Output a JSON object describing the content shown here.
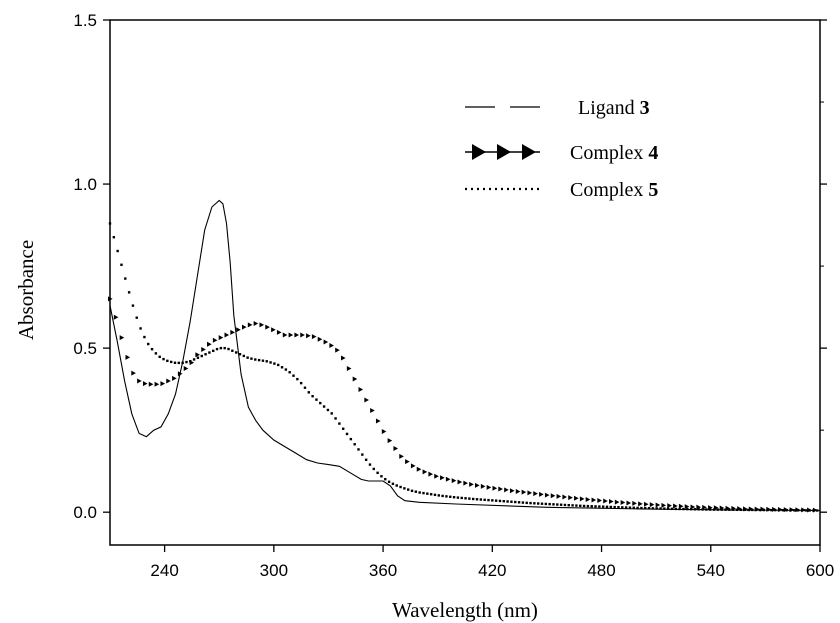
{
  "chart_data": {
    "type": "line",
    "xlabel": "Wavelength (nm)",
    "ylabel": "Absorbance",
    "xlim": [
      210,
      600
    ],
    "ylim": [
      -0.1,
      1.5
    ],
    "xticks": [
      "240",
      "300",
      "360",
      "420",
      "480",
      "540",
      "600"
    ],
    "yticks": [
      "0.0",
      "0.5",
      "1.0",
      "1.5"
    ],
    "grid": false,
    "legend_position": "top-right",
    "series": [
      {
        "name": "Ligand",
        "name_num": "3",
        "style": "solid-thin",
        "x": [
          210,
          214,
          218,
          222,
          226,
          230,
          234,
          238,
          242,
          246,
          250,
          254,
          258,
          262,
          266,
          270,
          272,
          274,
          276,
          278,
          282,
          286,
          290,
          294,
          300,
          306,
          312,
          318,
          324,
          330,
          336,
          342,
          348,
          352,
          356,
          360,
          364,
          368,
          372,
          380,
          400,
          450,
          500,
          550,
          600
        ],
        "y": [
          0.63,
          0.52,
          0.4,
          0.3,
          0.24,
          0.23,
          0.25,
          0.26,
          0.3,
          0.36,
          0.46,
          0.58,
          0.72,
          0.86,
          0.93,
          0.95,
          0.94,
          0.88,
          0.76,
          0.6,
          0.42,
          0.32,
          0.28,
          0.25,
          0.22,
          0.2,
          0.18,
          0.16,
          0.15,
          0.145,
          0.14,
          0.12,
          0.1,
          0.095,
          0.095,
          0.095,
          0.08,
          0.05,
          0.035,
          0.03,
          0.025,
          0.015,
          0.01,
          0.007,
          0.005
        ]
      },
      {
        "name": "Complex",
        "name_num": "4",
        "style": "triangle-markers",
        "x": [
          210,
          214,
          218,
          222,
          226,
          230,
          234,
          238,
          242,
          246,
          250,
          254,
          258,
          262,
          266,
          270,
          274,
          278,
          282,
          286,
          290,
          294,
          298,
          302,
          306,
          310,
          316,
          322,
          328,
          334,
          338,
          342,
          346,
          350,
          354,
          358,
          362,
          366,
          370,
          374,
          378,
          384,
          390,
          396,
          402,
          410,
          420,
          430,
          440,
          450,
          460,
          470,
          480,
          490,
          500,
          510,
          520,
          530,
          540,
          550,
          560,
          570,
          580,
          590,
          600
        ],
        "y": [
          0.65,
          0.58,
          0.5,
          0.43,
          0.4,
          0.39,
          0.39,
          0.39,
          0.4,
          0.41,
          0.43,
          0.45,
          0.48,
          0.5,
          0.52,
          0.53,
          0.54,
          0.55,
          0.56,
          0.57,
          0.575,
          0.57,
          0.56,
          0.55,
          0.54,
          0.54,
          0.54,
          0.535,
          0.52,
          0.5,
          0.47,
          0.43,
          0.39,
          0.35,
          0.31,
          0.27,
          0.23,
          0.2,
          0.17,
          0.15,
          0.135,
          0.12,
          0.108,
          0.1,
          0.092,
          0.083,
          0.074,
          0.066,
          0.059,
          0.052,
          0.046,
          0.04,
          0.035,
          0.03,
          0.026,
          0.022,
          0.019,
          0.016,
          0.014,
          0.012,
          0.01,
          0.009,
          0.008,
          0.007,
          0.006
        ]
      },
      {
        "name": "Complex",
        "name_num": "5",
        "style": "dotted",
        "x": [
          210,
          214,
          218,
          222,
          226,
          230,
          234,
          238,
          242,
          246,
          250,
          254,
          258,
          262,
          266,
          270,
          274,
          278,
          282,
          286,
          290,
          296,
          302,
          308,
          314,
          320,
          326,
          332,
          336,
          340,
          344,
          348,
          352,
          356,
          360,
          364,
          368,
          372,
          376,
          380,
          386,
          392,
          400,
          410,
          420,
          430,
          440,
          450,
          460,
          470,
          480,
          490,
          500,
          520,
          540,
          560,
          580,
          600
        ],
        "y": [
          0.88,
          0.8,
          0.72,
          0.64,
          0.57,
          0.52,
          0.49,
          0.47,
          0.46,
          0.455,
          0.455,
          0.46,
          0.47,
          0.48,
          0.49,
          0.5,
          0.5,
          0.49,
          0.48,
          0.47,
          0.465,
          0.46,
          0.45,
          0.43,
          0.4,
          0.36,
          0.33,
          0.3,
          0.27,
          0.24,
          0.21,
          0.18,
          0.15,
          0.125,
          0.105,
          0.09,
          0.08,
          0.072,
          0.065,
          0.06,
          0.055,
          0.05,
          0.045,
          0.04,
          0.036,
          0.032,
          0.028,
          0.025,
          0.022,
          0.019,
          0.017,
          0.015,
          0.013,
          0.01,
          0.008,
          0.007,
          0.006,
          0.005
        ]
      }
    ]
  }
}
